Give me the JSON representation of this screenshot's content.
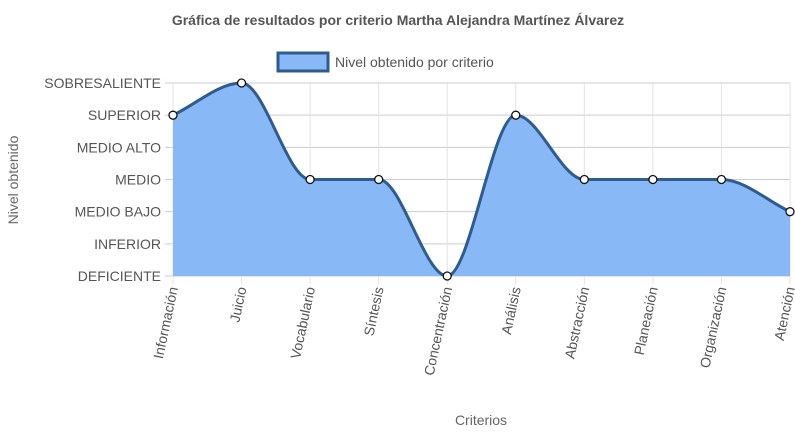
{
  "chart_data": {
    "type": "area",
    "title": "Gráfica de resultados por criterio Martha Alejandra Martínez Álvarez",
    "xlabel": "Criterios",
    "ylabel": "Nivel obtenido",
    "y_levels": [
      "DEFICIENTE",
      "INFERIOR",
      "MEDIO BAJO",
      "MEDIO",
      "MEDIO ALTO",
      "SUPERIOR",
      "SOBRESALIENTE"
    ],
    "categories": [
      "Información",
      "Juicio",
      "Vocabulario",
      "Síntesis",
      "Concentración",
      "Análisis",
      "Abstracción",
      "Planeación",
      "Organización",
      "Atención"
    ],
    "series": [
      {
        "name": "Nivel obtenido por criterio",
        "values": [
          "SUPERIOR",
          "SOBRESALIENTE",
          "MEDIO",
          "MEDIO",
          "DEFICIENTE",
          "SUPERIOR",
          "MEDIO",
          "MEDIO",
          "MEDIO",
          "MEDIO BAJO"
        ],
        "fill_color": "#88b8f5",
        "line_color": "#2e5c8e"
      }
    ],
    "grid": true,
    "legend_position": "top"
  }
}
